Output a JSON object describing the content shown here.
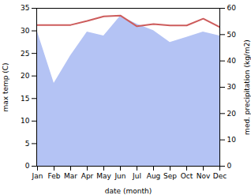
{
  "chart_data": {
    "type": "line",
    "xlabel": "date (month)",
    "categories": [
      "Jan",
      "Feb",
      "Mar",
      "Apr",
      "May",
      "Jun",
      "Jul",
      "Aug",
      "Sep",
      "Oct",
      "Nov",
      "Dec"
    ],
    "series": [
      {
        "name": "med. precipitation (kg/m2)",
        "type": "area",
        "axis": "y2",
        "color": "#b4c3f4",
        "values": [
          51,
          31.5,
          42,
          51,
          49.5,
          57,
          54,
          51.5,
          47,
          49,
          51,
          49.5
        ]
      },
      {
        "name": "max temp (C)",
        "type": "line",
        "color": "#cd5c5c",
        "values": [
          31.3,
          31.3,
          31.3,
          32.2,
          33.2,
          33.4,
          31.0,
          31.5,
          31.2,
          31.2,
          32.7,
          30.8
        ]
      }
    ],
    "ylim": [
      0,
      35
    ],
    "yticks": [
      0,
      5,
      10,
      15,
      20,
      25,
      30,
      35
    ],
    "y2lim": [
      0,
      60
    ],
    "y2ticks": [
      0,
      10,
      20,
      30,
      40,
      50,
      60
    ],
    "grid": false
  }
}
